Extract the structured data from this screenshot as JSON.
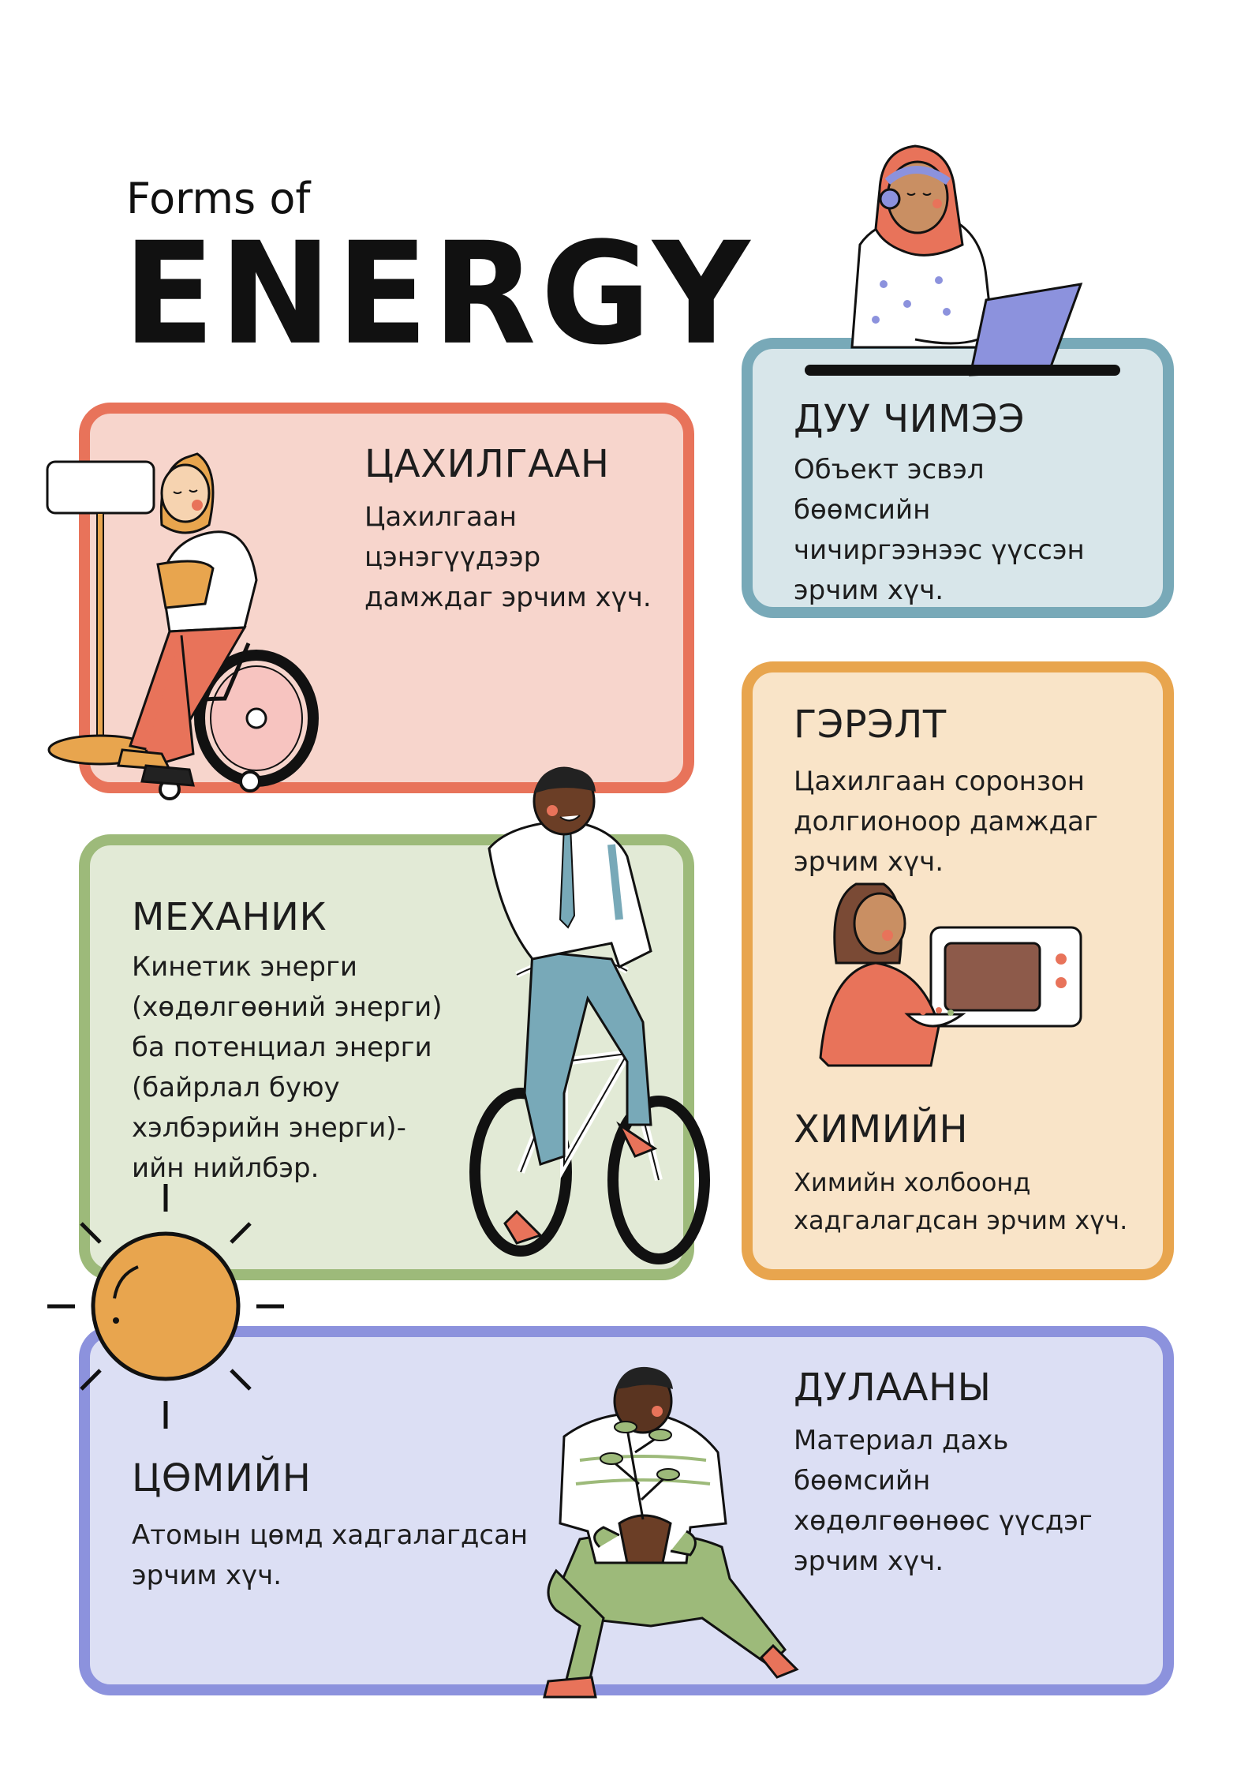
{
  "title": {
    "small": "Forms of",
    "big": "ENERGY"
  },
  "colors": {
    "electric": {
      "border": "#e8735a",
      "fill": "#f7d5cc"
    },
    "sound": {
      "border": "#78a9b8",
      "fill": "#d8e6ea"
    },
    "mechanical": {
      "border": "#9dba7a",
      "fill": "#e2ead6"
    },
    "light": {
      "border": "#e8a54e",
      "fill": "#f9e4c8"
    },
    "nuclear": {
      "border": "#8c92dd",
      "fill": "#dcdff4"
    },
    "sun": "#e8a54e"
  },
  "cards": {
    "electric": {
      "heading": "ЦАХИЛГААН",
      "lines": [
        "Цахилгаан",
        "цэнэгүүдээр",
        "дамждаг эрчим хүч."
      ]
    },
    "sound": {
      "heading": "ДУУ ЧИМЭЭ",
      "lines": [
        "Объект эсвэл",
        "бөөмсийн",
        "чичиргээнээс үүссэн",
        "эрчим хүч."
      ]
    },
    "light": {
      "heading": "ГЭРЭЛТ",
      "lines": [
        "Цахилгаан соронзон",
        "долгионоор дамждаг",
        "эрчим хүч."
      ]
    },
    "chemical": {
      "heading": "ХИМИЙН",
      "lines": [
        "Химийн холбоонд",
        "хадгалагдсан эрчим хүч."
      ]
    },
    "mechanical": {
      "heading": "МЕХАНИК",
      "lines": [
        "Кинетик энерги",
        "(хөдөлгөөний энерги)",
        "ба потенциал энерги",
        "(байрлал буюу",
        "хэлбэрийн энерги)-",
        "ийн нийлбэр."
      ]
    },
    "nuclear": {
      "heading": "ЦӨМИЙН",
      "lines": [
        "Атомын цөмд хадгалагдсан",
        "эрчим хүч."
      ]
    },
    "thermal": {
      "heading": "ДУЛААНЫ",
      "lines": [
        "Материал дахь",
        "бөөмсийн",
        "хөдөлгөөнөөс үүсдэг",
        "эрчим хүч."
      ]
    }
  }
}
